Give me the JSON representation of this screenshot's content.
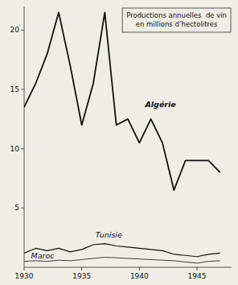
{
  "chart_data": {
    "type": "line",
    "title": "Productions annuelles  de vin\nen millions d’hectolitres",
    "x": [
      1930,
      1931,
      1932,
      1933,
      1934,
      1935,
      1936,
      1937,
      1938,
      1939,
      1940,
      1941,
      1942,
      1943,
      1944,
      1945,
      1946,
      1947
    ],
    "series": [
      {
        "name": "Algérie",
        "color": "#111111",
        "values": [
          13.5,
          15.5,
          18.0,
          21.5,
          17.0,
          12.0,
          15.5,
          21.5,
          12.0,
          12.5,
          10.5,
          12.5,
          10.5,
          6.5,
          9.0,
          9.0,
          9.0,
          8.0
        ]
      },
      {
        "name": "Tunisie",
        "color": "#111111",
        "values": [
          1.2,
          1.6,
          1.4,
          1.6,
          1.3,
          1.5,
          1.9,
          2.0,
          1.8,
          1.7,
          1.6,
          1.5,
          1.4,
          1.1,
          1.0,
          0.9,
          1.1,
          1.2
        ]
      },
      {
        "name": "Maroc",
        "color": "#111111",
        "values": [
          0.5,
          0.55,
          0.5,
          0.6,
          0.55,
          0.65,
          0.75,
          0.85,
          0.8,
          0.75,
          0.7,
          0.65,
          0.6,
          0.55,
          0.45,
          0.35,
          0.5,
          0.55
        ]
      }
    ],
    "xlim": [
      1930,
      1948
    ],
    "ylim": [
      0,
      22
    ],
    "xticks": [
      1930,
      1935,
      1940,
      1945
    ],
    "yticks": [
      5,
      10,
      15,
      20
    ]
  }
}
